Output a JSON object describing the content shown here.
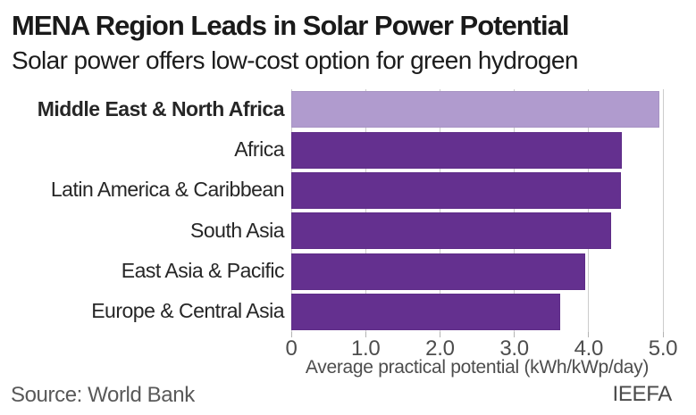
{
  "header": {
    "title": "MENA Region Leads in Solar Power Potential",
    "subtitle": "Solar power offers low-cost option for green hydrogen"
  },
  "footer": {
    "source": "Source: World Bank",
    "brand": "IEEFA"
  },
  "chart_data": {
    "type": "bar",
    "orientation": "horizontal",
    "title": "MENA Region Leads in Solar Power Potential",
    "subtitle": "Solar power offers low-cost option for green hydrogen",
    "categories": [
      "Middle East & North Africa",
      "Africa",
      "Latin America & Caribbean",
      "South Asia",
      "East Asia & Pacific",
      "Europe & Central Asia"
    ],
    "values": [
      4.95,
      4.45,
      4.43,
      4.3,
      3.95,
      3.62
    ],
    "highlight_index": 0,
    "xlabel": "Average practical potential (kWh/kWp/day)",
    "xlim": [
      0,
      5.0
    ],
    "xticks": [
      {
        "value": 0,
        "label": "0"
      },
      {
        "value": 1,
        "label": "1.0"
      },
      {
        "value": 2,
        "label": "2.0"
      },
      {
        "value": 3,
        "label": "3.0"
      },
      {
        "value": 4,
        "label": "4.0"
      },
      {
        "value": 5,
        "label": "5.0"
      }
    ],
    "grid": "vertical",
    "legend": "none",
    "colors": {
      "bar_default": "#64308f",
      "bar_highlight": "#b09bce",
      "gridline": "#cccccc"
    }
  }
}
